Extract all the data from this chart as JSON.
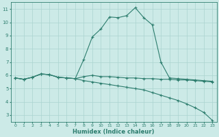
{
  "xlabel": "Humidex (Indice chaleur)",
  "x": [
    0,
    1,
    2,
    3,
    4,
    5,
    6,
    7,
    8,
    9,
    10,
    11,
    12,
    13,
    14,
    15,
    16,
    17,
    18,
    19,
    20,
    21,
    22,
    23
  ],
  "line1": [
    5.8,
    5.7,
    5.85,
    6.1,
    6.05,
    5.85,
    5.8,
    5.75,
    7.2,
    8.9,
    9.5,
    10.4,
    10.35,
    10.5,
    11.1,
    10.35,
    9.8,
    7.0,
    5.8,
    5.75,
    5.7,
    5.65,
    5.6,
    5.55
  ],
  "line2": [
    5.8,
    5.7,
    5.85,
    6.1,
    6.05,
    5.85,
    5.8,
    5.75,
    5.6,
    5.5,
    5.4,
    5.3,
    5.2,
    5.1,
    5.0,
    4.9,
    4.7,
    4.5,
    4.3,
    4.1,
    3.85,
    3.55,
    3.2,
    2.6
  ],
  "line3": [
    5.8,
    5.7,
    5.85,
    6.1,
    6.05,
    5.85,
    5.8,
    5.75,
    5.9,
    6.0,
    5.9,
    5.9,
    5.85,
    5.8,
    5.8,
    5.75,
    5.75,
    5.7,
    5.7,
    5.65,
    5.65,
    5.6,
    5.55,
    5.5
  ],
  "line_color": "#2d7d6e",
  "bg_color": "#cceae7",
  "grid_color": "#aad4d0",
  "ylim": [
    2.5,
    11.5
  ],
  "yticks": [
    3,
    4,
    5,
    6,
    7,
    8,
    9,
    10,
    11
  ],
  "xlim": [
    -0.5,
    23.5
  ]
}
